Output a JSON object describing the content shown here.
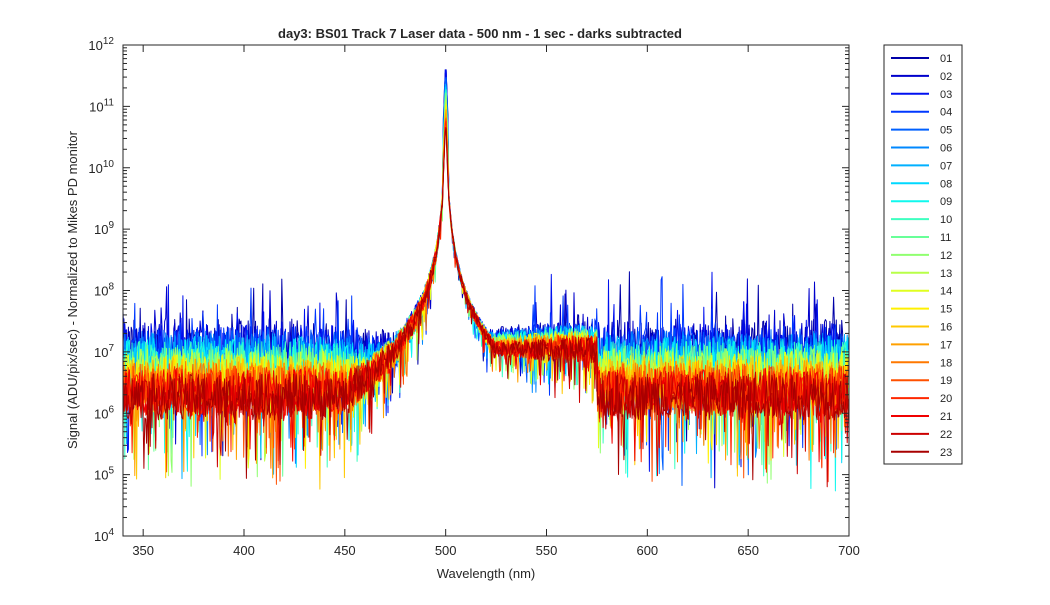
{
  "chart_data": {
    "type": "line",
    "title": "day3: BS01  Track 7 Laser data - 500 nm - 1 sec - darks subtracted",
    "xlabel": "Wavelength (nm)",
    "ylabel": "Signal (ADU/pix/sec) - Normalized to Mikes PD monitor",
    "xlim": [
      340,
      700
    ],
    "ylim_log10": [
      4,
      12
    ],
    "yscale": "log",
    "x_ticks": [
      350,
      400,
      450,
      500,
      550,
      600,
      650,
      700
    ],
    "x_tick_labels": [
      "350",
      "400",
      "450",
      "500",
      "550",
      "600",
      "650",
      "700"
    ],
    "y_tick_exponents": [
      4,
      5,
      6,
      7,
      8,
      9,
      10,
      11,
      12
    ],
    "y_tick_base": "10",
    "peak_wavelength": 500,
    "peak_log10_range": [
      10.8,
      11.8
    ],
    "legend_position": "right-outside",
    "series": [
      {
        "name": "01",
        "color": "#0000a8"
      },
      {
        "name": "02",
        "color": "#0000cc"
      },
      {
        "name": "03",
        "color": "#0010f0"
      },
      {
        "name": "04",
        "color": "#0038ff"
      },
      {
        "name": "05",
        "color": "#0060ff"
      },
      {
        "name": "06",
        "color": "#0088ff"
      },
      {
        "name": "07",
        "color": "#00b0ff"
      },
      {
        "name": "08",
        "color": "#00d8ff"
      },
      {
        "name": "09",
        "color": "#10f8ee"
      },
      {
        "name": "10",
        "color": "#3effc0"
      },
      {
        "name": "11",
        "color": "#68ff98"
      },
      {
        "name": "12",
        "color": "#90ff70"
      },
      {
        "name": "13",
        "color": "#b8ff48"
      },
      {
        "name": "14",
        "color": "#e0ff20"
      },
      {
        "name": "15",
        "color": "#fff000"
      },
      {
        "name": "16",
        "color": "#ffc800"
      },
      {
        "name": "17",
        "color": "#ffa000"
      },
      {
        "name": "18",
        "color": "#ff7800"
      },
      {
        "name": "19",
        "color": "#ff5000"
      },
      {
        "name": "20",
        "color": "#ff2800"
      },
      {
        "name": "21",
        "color": "#f00000"
      },
      {
        "name": "22",
        "color": "#cc0000"
      },
      {
        "name": "23",
        "color": "#a80000"
      }
    ]
  }
}
